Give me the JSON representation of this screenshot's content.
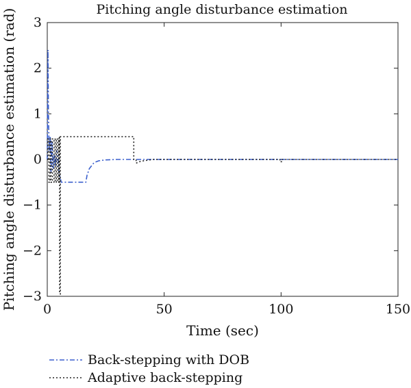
{
  "chart_data": {
    "type": "line",
    "title": "Pitching angle disturbance estimation",
    "xlabel": "Time (sec)",
    "ylabel": "Pitching angle disturbance estimation (rad)",
    "xlim": [
      0,
      150
    ],
    "ylim": [
      -3,
      3
    ],
    "xticks": [
      0,
      50,
      100,
      150
    ],
    "xtick_labels": [
      "0",
      "50",
      "100",
      "150"
    ],
    "yticks": [
      3,
      2,
      1,
      0,
      -1,
      -2,
      -3
    ],
    "ytick_labels": [
      "3",
      "2",
      "1",
      "0",
      "−1",
      "−2",
      "−3"
    ],
    "grid": false,
    "legend_placement": "below-left",
    "series": [
      {
        "name": "Back-stepping with DOB",
        "color": "#3a5fcd",
        "dash": "dashdot",
        "x": [
          0,
          0.3,
          0.5,
          0.8,
          1.0,
          1.3,
          1.6,
          2.0,
          2.5,
          3.0,
          3.5,
          4.0,
          4.5,
          5.0,
          6.0,
          10.0,
          16.5,
          17.0,
          18.0,
          20.0,
          22.0,
          25.0,
          30.0,
          40.0,
          60.0,
          100.0,
          150.0
        ],
        "y": [
          0,
          2.4,
          1.0,
          0.2,
          0.2,
          0.5,
          -0.3,
          0.4,
          -0.2,
          0.1,
          -0.15,
          0.2,
          0.1,
          -0.3,
          -0.5,
          -0.5,
          -0.5,
          -0.35,
          -0.2,
          -0.07,
          -0.03,
          -0.01,
          0,
          0,
          0,
          0,
          0
        ]
      },
      {
        "name": "Adaptive back-stepping",
        "color": "#222222",
        "dash": "dotted",
        "x": [
          0,
          0.2,
          0.2,
          0.7,
          0.7,
          1.2,
          1.2,
          1.6,
          1.6,
          2.2,
          2.2,
          2.9,
          2.9,
          3.4,
          3.4,
          3.9,
          3.9,
          4.3,
          4.3,
          4.9,
          4.9,
          5.0,
          5.0,
          5.3,
          5.3,
          5.6,
          5.6,
          6.0,
          6.0,
          37.0,
          37.0,
          38.0,
          38.0,
          40.0,
          45.0,
          99.5,
          99.5,
          100.5,
          100.5,
          150.0
        ],
        "y": [
          0,
          0,
          0.45,
          0.45,
          -0.5,
          -0.5,
          0.45,
          0.45,
          -0.5,
          -0.5,
          0.45,
          0.45,
          -0.5,
          -0.5,
          0.45,
          0.45,
          -0.5,
          -0.5,
          0.45,
          0.45,
          -0.5,
          -0.5,
          0.5,
          0.5,
          -2.95,
          -2.95,
          0.5,
          0.5,
          0.5,
          0.5,
          0,
          0,
          -0.08,
          -0.04,
          0,
          0,
          -0.05,
          -0.05,
          0,
          0
        ]
      }
    ]
  }
}
